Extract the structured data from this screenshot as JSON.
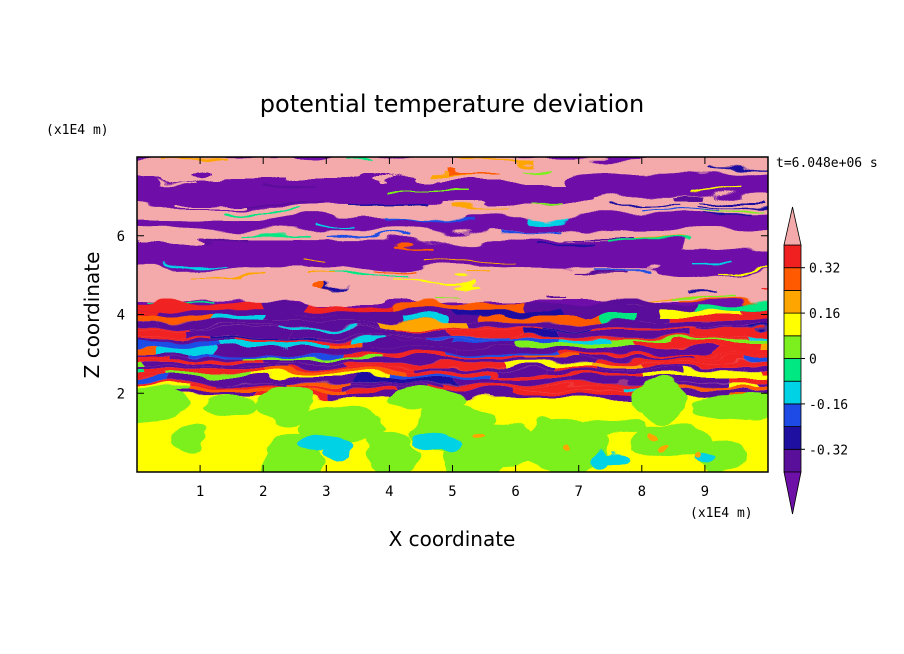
{
  "chart_data": {
    "type": "heatmap",
    "title": "potential temperature deviation",
    "xlabel": "X coordinate",
    "ylabel": "Z coordinate",
    "x_unit": "(x1E4 m)",
    "y_unit": "(x1E4 m)",
    "time_label": "t=6.048e+06 s",
    "xlim": [
      0,
      10
    ],
    "ylim": [
      0,
      8
    ],
    "x_ticks": [
      "1",
      "2",
      "3",
      "4",
      "5",
      "6",
      "7",
      "8",
      "9"
    ],
    "y_ticks": [
      "2",
      "4",
      "6"
    ],
    "colorbar": {
      "levels": [
        -0.4,
        -0.32,
        -0.24,
        -0.16,
        -0.08,
        0,
        0.08,
        0.16,
        0.24,
        0.32,
        0.4
      ],
      "labels": [
        "0.32",
        "0.16",
        "0",
        "-0.16",
        "-0.32"
      ],
      "label_values": [
        0.32,
        0.16,
        0,
        -0.16,
        -0.32
      ],
      "colors": [
        "#5A0F9A",
        "#1E0FA0",
        "#1E4BE6",
        "#00D2E6",
        "#00E882",
        "#7CF01E",
        "#FFFF00",
        "#FFA500",
        "#FF5A00",
        "#F02020",
        "#F4AAAA"
      ],
      "over_color": "#F4AAAA",
      "under_color": "#6E0FA8"
    },
    "field_description": {
      "lower_layer": {
        "z_range": [
          0,
          1.9
        ],
        "dominant_values": [
          0.0,
          0.08
        ],
        "pockets_value": -0.1
      },
      "transition_layer": {
        "z_range": [
          1.9,
          4.2
        ],
        "values": "mixed -0.4 to 0.4"
      },
      "upper_layer": {
        "z_range": [
          4.2,
          8
        ],
        "values": "alternating bands near -0.4 and 0.4"
      }
    }
  }
}
